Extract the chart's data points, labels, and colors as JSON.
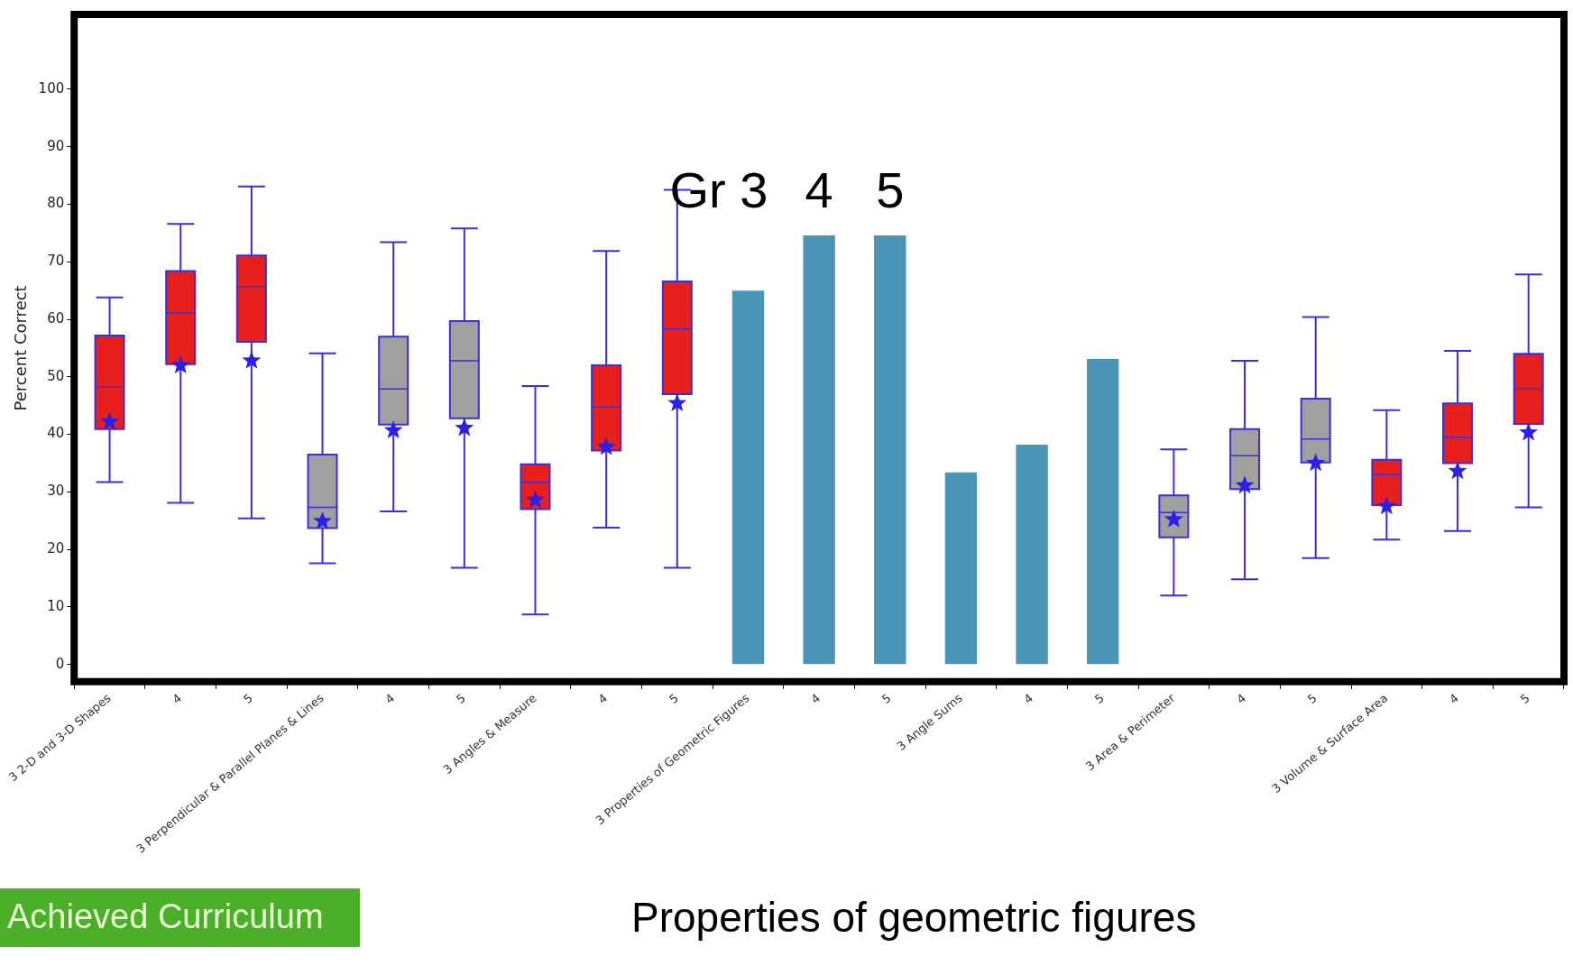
{
  "chart_data": {
    "type": "box",
    "ylabel": "Percent Correct",
    "categories": [
      "3 2-D and 3-D Shapes",
      "4",
      "5",
      "3 Perpendicular & Parallel Planes & Lines",
      "4",
      "5",
      "3 Angles & Measure",
      "4",
      "5",
      "3 Properties of Geometric Figures",
      "4",
      "5",
      "3 Angle Sums",
      "4",
      "5",
      "3 Area & Perimeter",
      "4",
      "5",
      "3 Volume & Surface Area",
      "4",
      "5"
    ],
    "ylim": [
      -3,
      113
    ],
    "yticks": [
      0,
      10,
      20,
      30,
      40,
      50,
      60,
      70,
      80,
      90,
      100
    ],
    "series": [
      {
        "colors": [
          "#e8201c",
          "#e8201c",
          "#e8201c",
          "#a0a0a0",
          "#a0a0a0",
          "#a0a0a0",
          "#e8201c",
          "#e8201c",
          "#e8201c",
          null,
          null,
          null,
          null,
          null,
          null,
          "#a0a0a0",
          "#a0a0a0",
          "#a0a0a0",
          "#e8201c",
          "#e8201c",
          "#e8201c"
        ],
        "boxes": [
          {
            "low": 31.7,
            "q1": 40.9,
            "median": 48.2,
            "q3": 57.2,
            "high": 63.8,
            "mean": 42.2
          },
          {
            "low": 28.1,
            "q1": 52.2,
            "median": 61.1,
            "q3": 68.4,
            "high": 76.6,
            "mean": 52
          },
          {
            "low": 25.4,
            "q1": 56.1,
            "median": 65.7,
            "q3": 71.1,
            "high": 83.1,
            "mean": 52.8
          },
          {
            "low": 17.6,
            "q1": 23.7,
            "median": 27.3,
            "q3": 36.5,
            "high": 54.1,
            "mean": 24.9
          },
          {
            "low": 26.6,
            "q1": 41.7,
            "median": 47.9,
            "q3": 57,
            "high": 73.4,
            "mean": 40.7
          },
          {
            "low": 16.8,
            "q1": 42.8,
            "median": 52.8,
            "q3": 59.7,
            "high": 75.8,
            "mean": 41.1
          },
          {
            "low": 8.7,
            "q1": 27,
            "median": 31.7,
            "q3": 34.8,
            "high": 48.4,
            "mean": 28.6
          },
          {
            "low": 23.8,
            "q1": 37.2,
            "median": 44.8,
            "q3": 52,
            "high": 71.9,
            "mean": 37.8
          },
          {
            "low": 16.8,
            "q1": 47,
            "median": 58.3,
            "q3": 66.6,
            "high": 82.5,
            "mean": 45.4
          },
          null,
          null,
          null,
          null,
          null,
          null,
          {
            "low": 12,
            "q1": 22.1,
            "median": 26.4,
            "q3": 29.4,
            "high": 37.4,
            "mean": 25.2
          },
          {
            "low": 14.8,
            "q1": 30.5,
            "median": 36.3,
            "q3": 40.9,
            "high": 52.8,
            "mean": 31.1
          },
          {
            "low": 18.5,
            "q1": 35.1,
            "median": 39.2,
            "q3": 46.2,
            "high": 60.4,
            "mean": 35
          },
          {
            "low": 21.7,
            "q1": 27.7,
            "median": 33,
            "q3": 35.6,
            "high": 44.2,
            "mean": 27.5
          },
          {
            "low": 23.2,
            "q1": 35,
            "median": 39.5,
            "q3": 45.4,
            "high": 54.5,
            "mean": 33.6
          },
          {
            "low": 27.3,
            "q1": 41.8,
            "median": 47.9,
            "q3": 54,
            "high": 67.8,
            "mean": 40.3
          }
        ]
      },
      {
        "type": "bar",
        "color": "#4a95b5",
        "values": [
          null,
          null,
          null,
          null,
          null,
          null,
          null,
          null,
          null,
          65,
          74.6,
          74.6,
          33.4,
          38.2,
          53.1,
          null,
          null,
          null,
          null,
          null,
          null
        ]
      }
    ],
    "annotations": [
      "Gr 3",
      "4",
      "5",
      "Properties of geometric figures",
      "Achieved Curriculum"
    ]
  }
}
